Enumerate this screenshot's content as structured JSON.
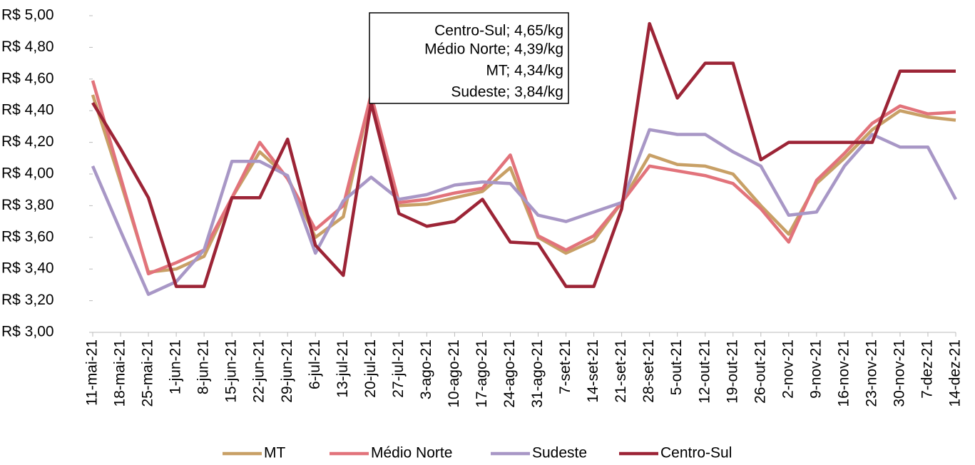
{
  "chart_data": {
    "type": "line",
    "categories": [
      "11-mai-21",
      "18-mai-21",
      "25-mai-21",
      "1-jun-21",
      "8-jun-21",
      "15-jun-21",
      "22-jun-21",
      "29-jun-21",
      "6-jul-21",
      "13-jul-21",
      "20-jul-21",
      "27-jul-21",
      "3-ago-21",
      "10-ago-21",
      "17-ago-21",
      "24-ago-21",
      "31-ago-21",
      "7-set-21",
      "14-set-21",
      "21-set-21",
      "28-set-21",
      "5-out-21",
      "12-out-21",
      "19-out-21",
      "26-out-21",
      "2-nov-21",
      "9-nov-21",
      "16-nov-21",
      "23-nov-21",
      "30-nov-21",
      "7-dez-21",
      "14-dez-21"
    ],
    "series": [
      {
        "name": "MT",
        "color": "#c8a066",
        "values": [
          4.5,
          3.95,
          3.38,
          3.4,
          3.48,
          3.85,
          4.14,
          3.98,
          3.6,
          3.73,
          4.5,
          3.8,
          3.81,
          3.85,
          3.89,
          4.04,
          3.6,
          3.5,
          3.58,
          3.82,
          4.12,
          4.06,
          4.05,
          4.0,
          3.8,
          3.62,
          3.94,
          4.1,
          4.28,
          4.4,
          4.36,
          4.34
        ]
      },
      {
        "name": "Médio Norte",
        "color": "#e2737b",
        "values": [
          4.59,
          3.98,
          3.37,
          3.44,
          3.52,
          3.85,
          4.2,
          3.97,
          3.65,
          3.8,
          4.5,
          3.82,
          3.84,
          3.88,
          3.91,
          4.12,
          3.61,
          3.52,
          3.61,
          3.82,
          4.05,
          4.02,
          3.99,
          3.94,
          3.78,
          3.57,
          3.96,
          4.13,
          4.32,
          4.43,
          4.38,
          4.39
        ]
      },
      {
        "name": "Sudeste",
        "color": "#a897c6",
        "values": [
          4.05,
          3.64,
          3.24,
          3.32,
          3.52,
          4.08,
          4.08,
          3.99,
          3.5,
          3.83,
          3.98,
          3.84,
          3.87,
          3.93,
          3.95,
          3.94,
          3.74,
          3.7,
          3.76,
          3.82,
          4.28,
          4.25,
          4.25,
          4.14,
          4.05,
          3.74,
          3.76,
          4.05,
          4.25,
          4.17,
          4.17,
          3.84
        ]
      },
      {
        "name": "Centro-Sul",
        "color": "#9c2436",
        "values": [
          4.45,
          4.16,
          3.85,
          3.29,
          3.29,
          3.85,
          3.85,
          4.22,
          3.55,
          3.36,
          4.45,
          3.75,
          3.67,
          3.7,
          3.84,
          3.57,
          3.56,
          3.29,
          3.29,
          3.78,
          4.95,
          4.48,
          4.7,
          4.7,
          4.09,
          4.2,
          4.2,
          4.2,
          4.2,
          4.65,
          4.65,
          4.65
        ]
      }
    ],
    "ylim": [
      3.0,
      5.0
    ],
    "yticks": [
      {
        "value": 3.0,
        "label": "R$ 3,00"
      },
      {
        "value": 3.2,
        "label": "R$ 3,20"
      },
      {
        "value": 3.4,
        "label": "R$ 3,40"
      },
      {
        "value": 3.6,
        "label": "R$ 3,60"
      },
      {
        "value": 3.8,
        "label": "R$ 3,80"
      },
      {
        "value": 4.0,
        "label": "R$ 4,00"
      },
      {
        "value": 4.2,
        "label": "R$ 4,20"
      },
      {
        "value": 4.4,
        "label": "R$ 4,40"
      },
      {
        "value": 4.6,
        "label": "R$ 4,60"
      },
      {
        "value": 4.8,
        "label": "R$ 4,80"
      },
      {
        "value": 5.0,
        "label": "R$ 5,00"
      }
    ],
    "annotations": [
      "Centro-Sul; 4,65/kg",
      "Médio Norte; 4,39/kg",
      "MT; 4,34/kg",
      "Sudeste; 3,84/kg"
    ],
    "legend": "bottom"
  }
}
